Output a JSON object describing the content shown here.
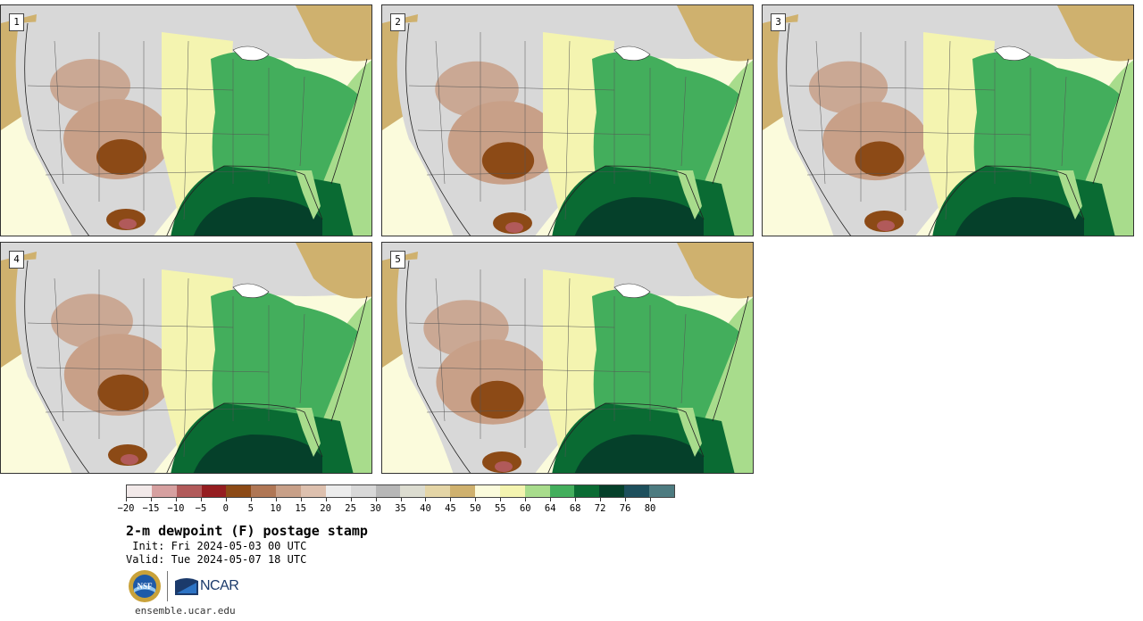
{
  "panels": [
    {
      "label": "1"
    },
    {
      "label": "2"
    },
    {
      "label": "3"
    },
    {
      "label": "4"
    },
    {
      "label": "5"
    }
  ],
  "colorbar": {
    "colors": [
      "#f2e9e9",
      "#d6a0a0",
      "#b15a5a",
      "#951d20",
      "#8c4a16",
      "#b07755",
      "#c8a088",
      "#ddc0ae",
      "#ececec",
      "#d8d8d8",
      "#b7b7b7",
      "#dcdcd0",
      "#e4d5a6",
      "#cfb16e",
      "#fbfbdc",
      "#f4f4b0",
      "#a8dc8c",
      "#43ae5c",
      "#0a6b33",
      "#05402a",
      "#1d4f5c",
      "#4d7b80"
    ],
    "tick_labels": [
      "−20",
      "−15",
      "−10",
      "−5",
      "0",
      "5",
      "10",
      "15",
      "20",
      "25",
      "30",
      "35",
      "40",
      "45",
      "50",
      "55",
      "60",
      "64",
      "68",
      "72",
      "76",
      "80"
    ]
  },
  "title": "2-m dewpoint (F) postage stamp",
  "init": " Init: Fri 2024-05-03 00 UTC",
  "valid": "Valid: Tue 2024-05-07 18 UTC",
  "logos": {
    "nsf": "NSF",
    "ncar": "NCAR"
  },
  "site": "ensemble.ucar.edu",
  "map_colors": {
    "ocean_gulf": "#05402a",
    "ocean_near": "#0a6b33",
    "atlantic_far": "#a8dc8c",
    "pacific": "#fbfbdc",
    "plains_green": "#43ae5c",
    "light_yellow": "#f4f4b0",
    "tan": "#cfb16e",
    "grey": "#d8d8d8",
    "brown_light": "#c8a088",
    "brown_dark": "#8c4a16",
    "magenta": "#b15a5a"
  }
}
